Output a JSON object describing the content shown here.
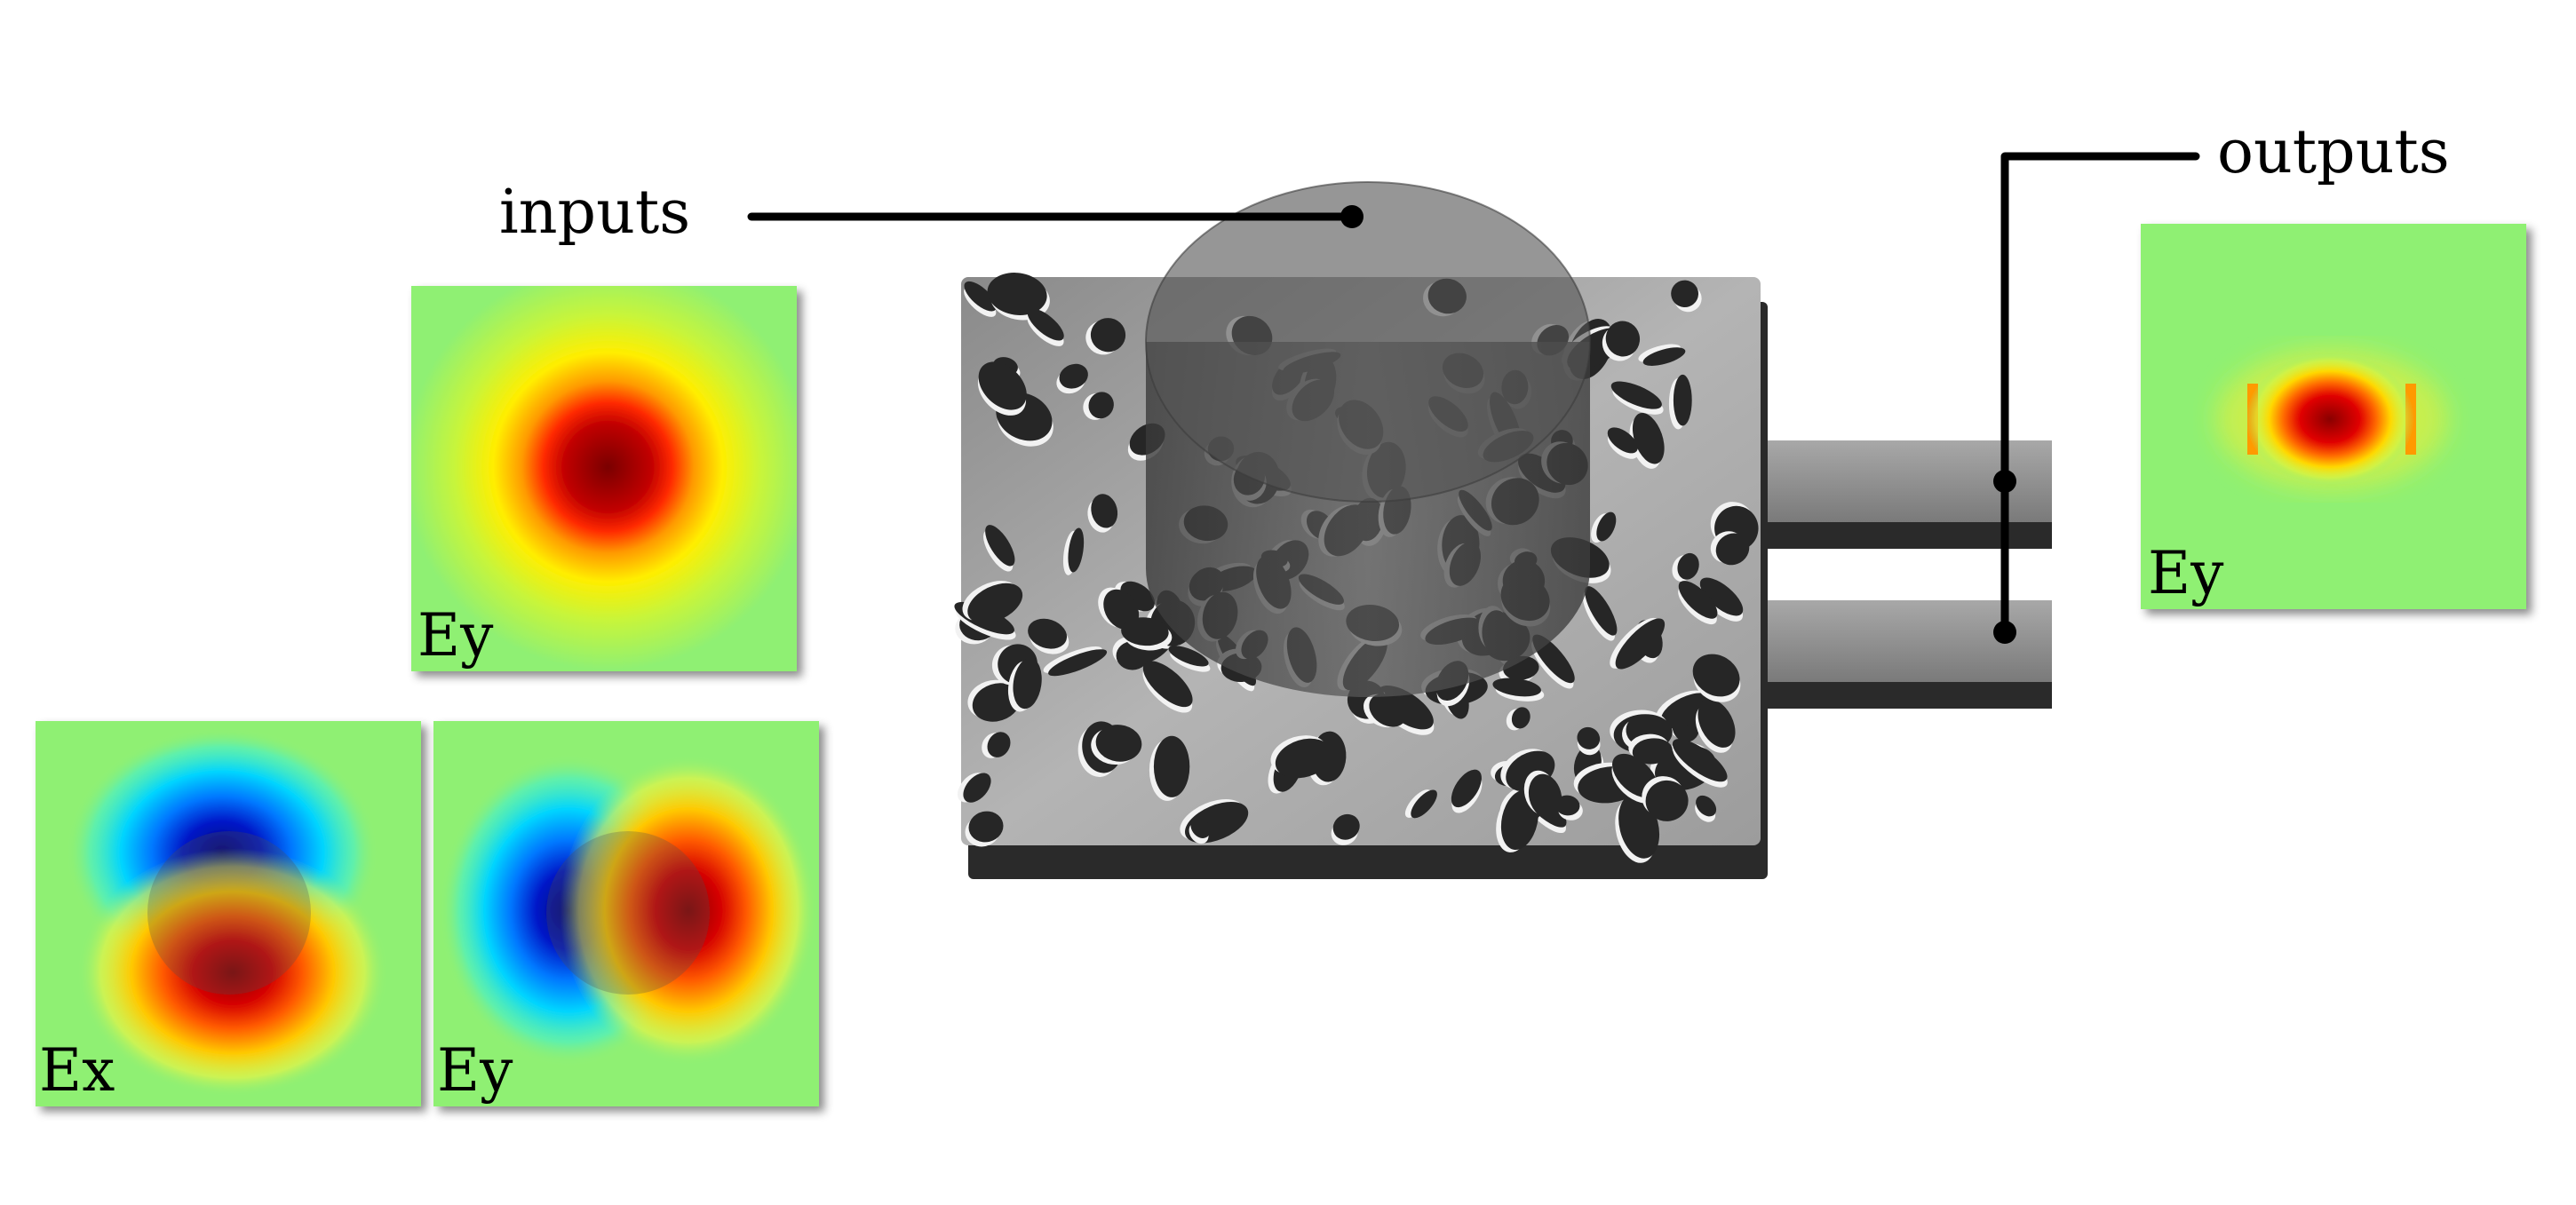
{
  "labels": {
    "inputs": "inputs",
    "outputs": "outputs"
  },
  "panels": {
    "input_ey_fundamental": "Ey",
    "input_ex_mode": "Ex",
    "input_ey_mode": "Ey",
    "output_ey": "Ey"
  },
  "colors": {
    "field_background": "#8ff073",
    "field_peak": "#a00000",
    "field_negative": "#0010b0",
    "device_surface": "#9a9a9a",
    "device_shadow": "#2a2a2a",
    "input_region": "#505050",
    "callout_line": "#000000"
  }
}
